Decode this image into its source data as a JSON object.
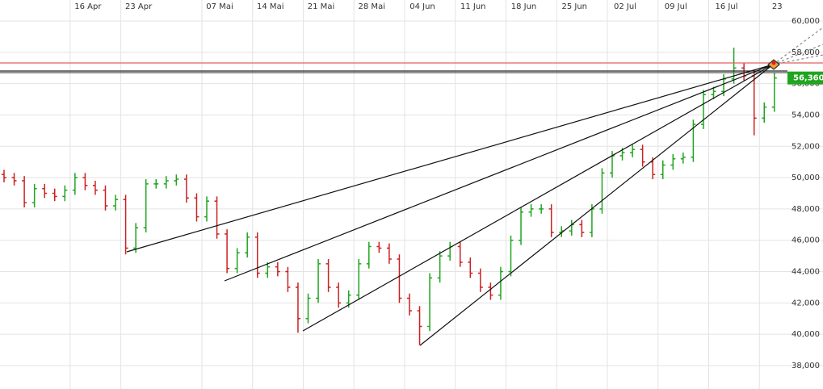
{
  "chart_data": {
    "type": "ohlc",
    "categories": [
      null,
      null,
      null,
      null,
      null,
      null,
      null,
      "16 Apr",
      null,
      null,
      null,
      null,
      "23 Apr",
      null,
      null,
      null,
      null,
      null,
      null,
      null,
      "07 Mai",
      null,
      null,
      null,
      null,
      "14 Mai",
      null,
      null,
      null,
      null,
      "21 Mai",
      null,
      null,
      null,
      null,
      "28 Mai",
      null,
      null,
      null,
      null,
      "04 Jun",
      null,
      null,
      null,
      null,
      "11 Jun",
      null,
      null,
      null,
      null,
      "18 Jun",
      null,
      null,
      null,
      null,
      "25 Jun",
      null,
      null,
      null,
      null,
      "02 Jul",
      null,
      null,
      null,
      null,
      "09 Jul",
      null,
      null,
      null,
      null,
      "16 Jul",
      null,
      null,
      null,
      null,
      "23",
      null
    ],
    "open": [
      50200,
      50000,
      49800,
      48400,
      49300,
      49000,
      48800,
      49200,
      50000,
      49500,
      49200,
      48200,
      48600,
      45500,
      46800,
      49600,
      49600,
      49800,
      49900,
      48700,
      47500,
      48500,
      46400,
      44200,
      45200,
      46200,
      43900,
      44300,
      44000,
      43000,
      41000,
      42300,
      44500,
      43000,
      42000,
      42500,
      44500,
      45600,
      45500,
      44800,
      42300,
      41500,
      40500,
      43600,
      45000,
      45600,
      44600,
      43900,
      43000,
      42500,
      44000,
      46000,
      47800,
      48000,
      48000,
      46500,
      46600,
      47000,
      46500,
      48000,
      50300,
      51400,
      51600,
      51800,
      51000,
      50200,
      50800,
      51200,
      51300,
      53400,
      55300,
      55500,
      56300,
      57000,
      56500,
      53800,
      54500
    ],
    "high": [
      50500,
      50300,
      50100,
      49600,
      49600,
      49300,
      49500,
      50300,
      50300,
      49800,
      49500,
      48900,
      48900,
      47100,
      49900,
      49900,
      50100,
      50200,
      50200,
      49000,
      48800,
      48800,
      46700,
      45500,
      46500,
      46500,
      44600,
      44600,
      44300,
      43300,
      42600,
      44800,
      44800,
      43300,
      42800,
      44800,
      45900,
      45900,
      45800,
      45100,
      42600,
      41800,
      43900,
      45300,
      45900,
      45900,
      44900,
      44200,
      43300,
      44300,
      46300,
      48100,
      48300,
      48300,
      48300,
      46900,
      47300,
      47300,
      48300,
      50600,
      51700,
      51900,
      52100,
      52100,
      51300,
      51100,
      51500,
      51600,
      53700,
      55600,
      55800,
      56600,
      58300,
      57300,
      56800,
      54800,
      56700
    ],
    "low": [
      49700,
      49500,
      48100,
      48100,
      48700,
      48500,
      48500,
      48900,
      49200,
      48900,
      47900,
      47900,
      45100,
      45200,
      46500,
      49300,
      49300,
      49500,
      48400,
      47200,
      47200,
      46100,
      43900,
      43900,
      44900,
      43600,
      43600,
      43700,
      42700,
      40100,
      40700,
      42000,
      42700,
      41700,
      41700,
      42200,
      44200,
      45200,
      44500,
      42000,
      41200,
      39300,
      40200,
      43300,
      44700,
      44300,
      43600,
      42700,
      42200,
      42200,
      43700,
      45700,
      47500,
      47700,
      46200,
      46200,
      46300,
      46200,
      46200,
      47700,
      50000,
      51100,
      51300,
      50700,
      49900,
      49900,
      50500,
      50900,
      51000,
      53100,
      55000,
      55200,
      56000,
      56200,
      52700,
      53500,
      54200
    ],
    "close": [
      50000,
      49800,
      48400,
      49300,
      49000,
      48800,
      49200,
      50000,
      49500,
      49200,
      48200,
      48600,
      45500,
      46800,
      49600,
      49600,
      49800,
      49900,
      48700,
      47500,
      48500,
      46400,
      44200,
      45200,
      46200,
      43900,
      44300,
      44000,
      43000,
      41000,
      42300,
      44500,
      43000,
      42000,
      42500,
      44500,
      45600,
      45500,
      44800,
      42300,
      41500,
      40500,
      43600,
      45000,
      45600,
      44600,
      43900,
      43000,
      42500,
      44000,
      46000,
      47800,
      48000,
      48000,
      46500,
      46600,
      47000,
      46500,
      48000,
      50300,
      51400,
      51600,
      51800,
      51000,
      50200,
      50800,
      51200,
      51300,
      53400,
      55300,
      55500,
      56300,
      57000,
      56500,
      53800,
      54500,
      56360
    ],
    "up_color": "#1fa51f",
    "down_color": "#cc2020",
    "ylim": [
      36506,
      61340
    ],
    "yticks": [
      {
        "value": 38000,
        "label": "38,000"
      },
      {
        "value": 40000,
        "label": "40,000"
      },
      {
        "value": 42000,
        "label": "42,000"
      },
      {
        "value": 44000,
        "label": "44,000"
      },
      {
        "value": 46000,
        "label": "46,000"
      },
      {
        "value": 48000,
        "label": "48,000"
      },
      {
        "value": 50000,
        "label": "50,000"
      },
      {
        "value": 52000,
        "label": "52,000"
      },
      {
        "value": 54000,
        "label": "54,000"
      },
      {
        "value": 56000,
        "label": "56,000"
      },
      {
        "value": 58000,
        "label": "58,000"
      },
      {
        "value": 60000,
        "label": "60,000"
      }
    ],
    "last_price": {
      "value": 56360,
      "label": "56,360"
    },
    "grid": true
  }
}
